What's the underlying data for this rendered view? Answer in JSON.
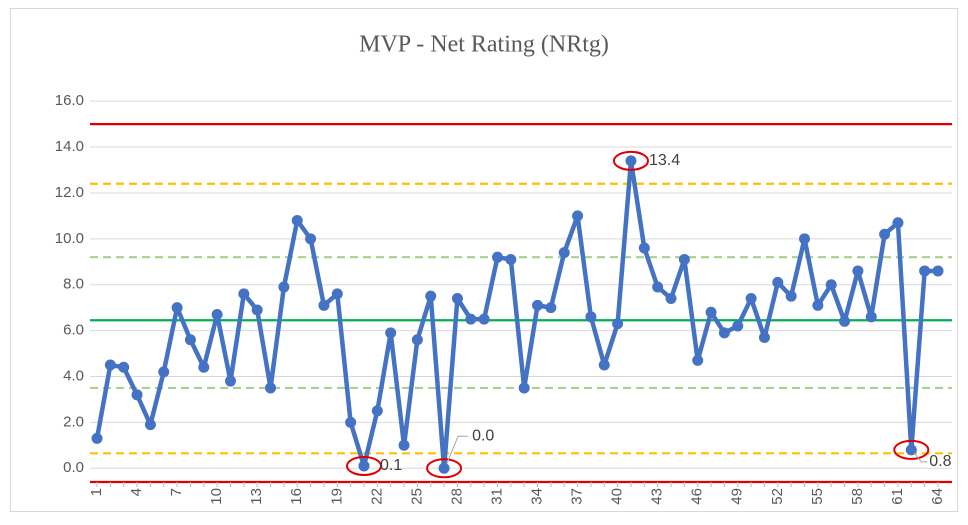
{
  "chart_data": {
    "type": "line",
    "title": "MVP - Net Rating (NRtg)",
    "categories": [
      1,
      null,
      null,
      4,
      null,
      null,
      7,
      null,
      null,
      10,
      null,
      null,
      13,
      null,
      null,
      16,
      null,
      null,
      19,
      null,
      null,
      22,
      null,
      null,
      25,
      null,
      null,
      28,
      null,
      null,
      31,
      null,
      null,
      34,
      null,
      null,
      37,
      null,
      null,
      40,
      null,
      null,
      43,
      null,
      null,
      46,
      null,
      null,
      49,
      null,
      null,
      52,
      null,
      null,
      55,
      null,
      null,
      58,
      null,
      null,
      61,
      null,
      null,
      64
    ],
    "series": [
      {
        "color": "#4472c4",
        "values": [
          1.3,
          4.5,
          4.4,
          3.2,
          1.9,
          4.2,
          7.0,
          5.6,
          4.4,
          6.7,
          3.8,
          7.6,
          6.9,
          3.5,
          7.9,
          10.8,
          10.0,
          7.1,
          7.6,
          2.0,
          0.1,
          2.5,
          5.9,
          1.0,
          5.6,
          7.5,
          0.0,
          7.4,
          6.5,
          6.5,
          9.2,
          9.1,
          3.5,
          7.1,
          7.0,
          9.4,
          11.0,
          6.6,
          4.5,
          6.3,
          13.4,
          9.6,
          7.9,
          7.4,
          9.1,
          4.7,
          6.8,
          5.9,
          6.2,
          7.4,
          5.7,
          8.1,
          7.5,
          10.0,
          7.1,
          8.0,
          6.4,
          8.6,
          6.6,
          10.2,
          10.7,
          0.8,
          8.6,
          8.6
        ],
        "value_labels": [
          null,
          null,
          null,
          null,
          null,
          null,
          null,
          null,
          null,
          null,
          null,
          null,
          null,
          null,
          null,
          null,
          null,
          null,
          null,
          null,
          "0.1",
          null,
          null,
          null,
          null,
          null,
          "0.0",
          null,
          null,
          null,
          null,
          null,
          null,
          null,
          null,
          null,
          null,
          null,
          null,
          null,
          "13.4",
          null,
          null,
          null,
          null,
          null,
          null,
          null,
          null,
          null,
          null,
          null,
          null,
          null,
          null,
          null,
          null,
          null,
          null,
          null,
          null,
          "0.8",
          null,
          null
        ]
      }
    ],
    "reference_lines": [
      {
        "value": 15.0,
        "color": "#e00000",
        "style": "solid"
      },
      {
        "value": 12.4,
        "color": "#ffc000",
        "style": "dashed"
      },
      {
        "value": 9.2,
        "color": "#a9d18e",
        "style": "dashed"
      },
      {
        "value": 6.45,
        "color": "#00b050",
        "style": "solid"
      },
      {
        "value": 3.5,
        "color": "#a9d18e",
        "style": "dashed"
      },
      {
        "value": 0.65,
        "color": "#ffc000",
        "style": "dashed"
      },
      {
        "value": -0.6,
        "color": "#e00000",
        "style": "solid"
      }
    ],
    "ylim": [
      -0.6,
      16.4
    ],
    "yticks": [
      {
        "value": 0,
        "label": "0.0"
      },
      {
        "value": 2,
        "label": "2.0"
      },
      {
        "value": 4,
        "label": "4.0"
      },
      {
        "value": 6,
        "label": "6.0"
      },
      {
        "value": 8,
        "label": "8.0"
      },
      {
        "value": 10,
        "label": "10.0"
      },
      {
        "value": 12,
        "label": "12.0"
      },
      {
        "value": 14,
        "label": "14.0"
      },
      {
        "value": 16,
        "label": "16.0"
      }
    ],
    "grid": true,
    "highlight_color": "#e00000"
  }
}
